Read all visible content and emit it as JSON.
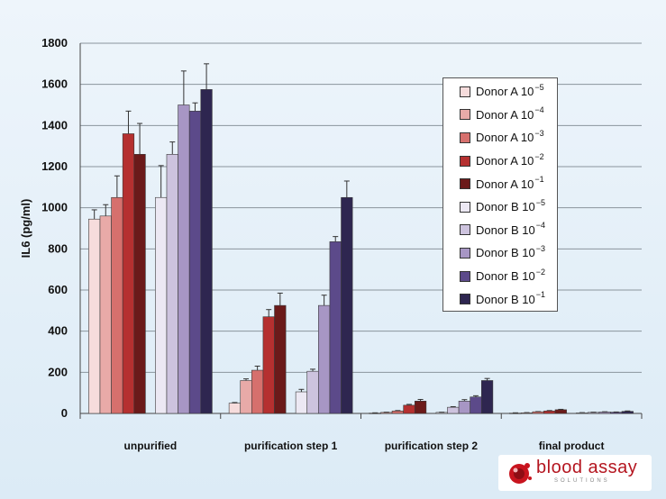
{
  "chart_data": {
    "type": "bar",
    "title": "",
    "xlabel": "",
    "ylabel": "IL6 (pg/ml)",
    "ylim": [
      0,
      1800
    ],
    "yticks": [
      0,
      200,
      400,
      600,
      800,
      1000,
      1200,
      1400,
      1600,
      1800
    ],
    "grid": true,
    "legend_position": "right",
    "categories": [
      "unpurified",
      "purification step 1",
      "purification step 2",
      "final product"
    ],
    "series": [
      {
        "name": "Donor A",
        "exponent": "−5",
        "color": "#f6dcdc",
        "values": [
          945,
          50,
          2,
          2
        ],
        "errors": [
          45,
          3,
          1,
          1
        ]
      },
      {
        "name": "Donor A",
        "exponent": "−4",
        "color": "#e8aaa8",
        "values": [
          960,
          160,
          5,
          3
        ],
        "errors": [
          55,
          8,
          1,
          1
        ]
      },
      {
        "name": "Donor A",
        "exponent": "−3",
        "color": "#d6706d",
        "values": [
          1050,
          210,
          12,
          8
        ],
        "errors": [
          105,
          20,
          2,
          1
        ]
      },
      {
        "name": "Donor A",
        "exponent": "−2",
        "color": "#b53030",
        "values": [
          1360,
          470,
          40,
          12
        ],
        "errors": [
          110,
          35,
          4,
          2
        ]
      },
      {
        "name": "Donor A",
        "exponent": "−1",
        "color": "#6b1a1a",
        "values": [
          1260,
          525,
          60,
          18
        ],
        "errors": [
          150,
          60,
          8,
          2
        ]
      },
      {
        "name": "Donor B",
        "exponent": "−5",
        "color": "#ece8f3",
        "values": [
          1050,
          105,
          5,
          3
        ],
        "errors": [
          155,
          12,
          1,
          1
        ]
      },
      {
        "name": "Donor B",
        "exponent": "−4",
        "color": "#cdc3de",
        "values": [
          1260,
          205,
          30,
          5
        ],
        "errors": [
          60,
          10,
          3,
          1
        ]
      },
      {
        "name": "Donor B",
        "exponent": "−3",
        "color": "#a796c4",
        "values": [
          1500,
          525,
          60,
          7
        ],
        "errors": [
          165,
          50,
          7,
          1
        ]
      },
      {
        "name": "Donor B",
        "exponent": "−2",
        "color": "#5c4a8a",
        "values": [
          1470,
          835,
          80,
          6
        ],
        "errors": [
          40,
          25,
          6,
          1
        ]
      },
      {
        "name": "Donor B",
        "exponent": "−1",
        "color": "#2e2650",
        "values": [
          1575,
          1050,
          160,
          10
        ],
        "errors": [
          125,
          80,
          10,
          2
        ]
      }
    ],
    "legend_base": "10"
  },
  "logo": {
    "name": "blood assay",
    "subtitle": "SOLUTIONS"
  }
}
